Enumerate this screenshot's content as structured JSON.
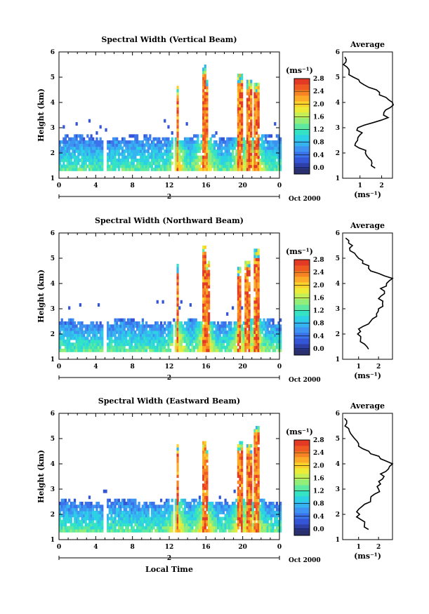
{
  "figure": {
    "date_label": "Oct 2000",
    "xlabel": "Local Time",
    "ylabel": "Height (km)",
    "cbar_unit": "(ms⁻¹)",
    "avg_title": "Average",
    "avg_xlabel": "(ms⁻¹)",
    "day_label": "2",
    "colors": {
      "scale": [
        "#2a2f6e",
        "#2e3fa8",
        "#3456d6",
        "#3b73ea",
        "#3e93f2",
        "#35b4f0",
        "#2dd1e6",
        "#34e2c4",
        "#5fe9a0",
        "#93ee79",
        "#c4ef56",
        "#ecec38",
        "#fbd22c",
        "#fbab27",
        "#f78424",
        "#ef5a23",
        "#e33a26"
      ],
      "profile": "#000000"
    }
  },
  "chart_data": [
    {
      "type": "heatmap",
      "title": "Spectral Width (Vertical Beam)",
      "xlabel": "Local Time",
      "ylabel": "Height (km)",
      "xlim": [
        0,
        24
      ],
      "ylim": [
        1,
        6
      ],
      "xticks": [
        "0",
        "4",
        "8",
        "12",
        "16",
        "20",
        "0"
      ],
      "yticks": [
        "1",
        "2",
        "3",
        "4",
        "5",
        "6"
      ],
      "colorbar": {
        "unit": "(ms⁻¹)",
        "ticks": [
          "0.0",
          "0.4",
          "0.8",
          "1.2",
          "1.6",
          "2.0",
          "2.4",
          "2.8"
        ],
        "range": [
          0,
          3.0
        ]
      },
      "summary": "Background layer 1.3-2.6 km mostly 0.4-1.2 ms-1; high-width (>2.5 ms-1) convective columns near 12.9 h, 15.5-16.2 h, 19.4-21.6 h reaching 4.5-5.4 km",
      "average_profile": {
        "title": "Average",
        "xlabel": "(ms⁻¹)",
        "xticks": [
          "1",
          "2"
        ],
        "xlim": [
          0.2,
          2.5
        ],
        "heights": [
          1.4,
          1.6,
          1.8,
          2.0,
          2.2,
          2.4,
          2.6,
          2.8,
          3.0,
          3.2,
          3.4,
          3.6,
          3.8,
          4.0,
          4.2,
          4.4,
          4.6,
          4.8,
          5.0,
          5.2,
          5.4,
          5.6,
          5.8
        ],
        "values": [
          1.7,
          1.55,
          1.4,
          1.25,
          0.95,
          0.8,
          0.9,
          1.1,
          0.9,
          1.6,
          2.3,
          2.1,
          2.4,
          2.5,
          2.2,
          1.9,
          1.4,
          1.0,
          0.7,
          0.5,
          0.4,
          0.35,
          0.3
        ]
      }
    },
    {
      "type": "heatmap",
      "title": "Spectral Width (Northward Beam)",
      "xlabel": "Local Time",
      "ylabel": "Height (km)",
      "xlim": [
        0,
        24
      ],
      "ylim": [
        1,
        6
      ],
      "xticks": [
        "0",
        "4",
        "8",
        "12",
        "16",
        "20",
        "0"
      ],
      "yticks": [
        "1",
        "2",
        "3",
        "4",
        "5",
        "6"
      ],
      "colorbar": {
        "unit": "(ms⁻¹)",
        "ticks": [
          "0.0",
          "0.4",
          "0.8",
          "1.2",
          "1.6",
          "2.0",
          "2.4",
          "2.8"
        ],
        "range": [
          0,
          3.0
        ]
      },
      "summary": "Background layer 1.3-2.5 km mostly 0.6-1.4 ms-1; high-width columns near 12.9 h, 15.6-16.2 h, 19.4-21.7 h reaching 4.6-5.5 km",
      "average_profile": {
        "title": "Average",
        "xlabel": "(ms⁻¹)",
        "xticks": [
          "1",
          "2"
        ],
        "xlim": [
          0.2,
          2.7
        ],
        "heights": [
          1.4,
          1.6,
          1.8,
          2.0,
          2.2,
          2.4,
          2.6,
          2.8,
          3.0,
          3.2,
          3.4,
          3.6,
          3.8,
          4.0,
          4.2,
          4.4,
          4.6,
          4.8,
          5.0,
          5.2,
          5.4,
          5.6,
          5.8
        ],
        "values": [
          1.5,
          1.3,
          1.1,
          0.95,
          1.0,
          1.5,
          1.7,
          1.9,
          2.0,
          2.2,
          2.0,
          2.3,
          2.1,
          2.4,
          2.7,
          2.0,
          1.5,
          1.2,
          1.0,
          0.8,
          0.55,
          0.5,
          0.35
        ]
      }
    },
    {
      "type": "heatmap",
      "title": "Spectral Width (Eastward Beam)",
      "xlabel": "Local Time",
      "ylabel": "Height (km)",
      "xlim": [
        0,
        24
      ],
      "ylim": [
        1,
        6
      ],
      "xticks": [
        "0",
        "4",
        "8",
        "12",
        "16",
        "20",
        "0"
      ],
      "yticks": [
        "1",
        "2",
        "3",
        "4",
        "5",
        "6"
      ],
      "colorbar": {
        "unit": "(ms⁻¹)",
        "ticks": [
          "0.0",
          "0.4",
          "0.8",
          "1.2",
          "1.6",
          "2.0",
          "2.4",
          "2.8"
        ],
        "range": [
          0,
          3.0
        ]
      },
      "summary": "Background layer 1.3-2.5 km mostly 0.4-1.2 ms-1; high-width columns near 12.9 h, 15.5-16.2 h, 19.4-21.6 h reaching 4.5-5.5 km",
      "average_profile": {
        "title": "Average",
        "xlabel": "(ms⁻¹)",
        "xticks": [
          "1",
          "2"
        ],
        "xlim": [
          0.2,
          2.7
        ],
        "heights": [
          1.4,
          1.6,
          1.8,
          2.0,
          2.2,
          2.4,
          2.6,
          2.8,
          3.0,
          3.2,
          3.4,
          3.6,
          3.8,
          4.0,
          4.2,
          4.4,
          4.6,
          4.8,
          5.0,
          5.2,
          5.4,
          5.6,
          5.8
        ],
        "values": [
          1.5,
          1.3,
          1.1,
          1.05,
          1.0,
          1.3,
          1.6,
          1.8,
          2.0,
          2.1,
          2.2,
          2.1,
          2.5,
          2.7,
          2.1,
          1.6,
          1.2,
          1.0,
          0.8,
          0.6,
          0.5,
          0.4,
          0.3
        ]
      }
    }
  ]
}
